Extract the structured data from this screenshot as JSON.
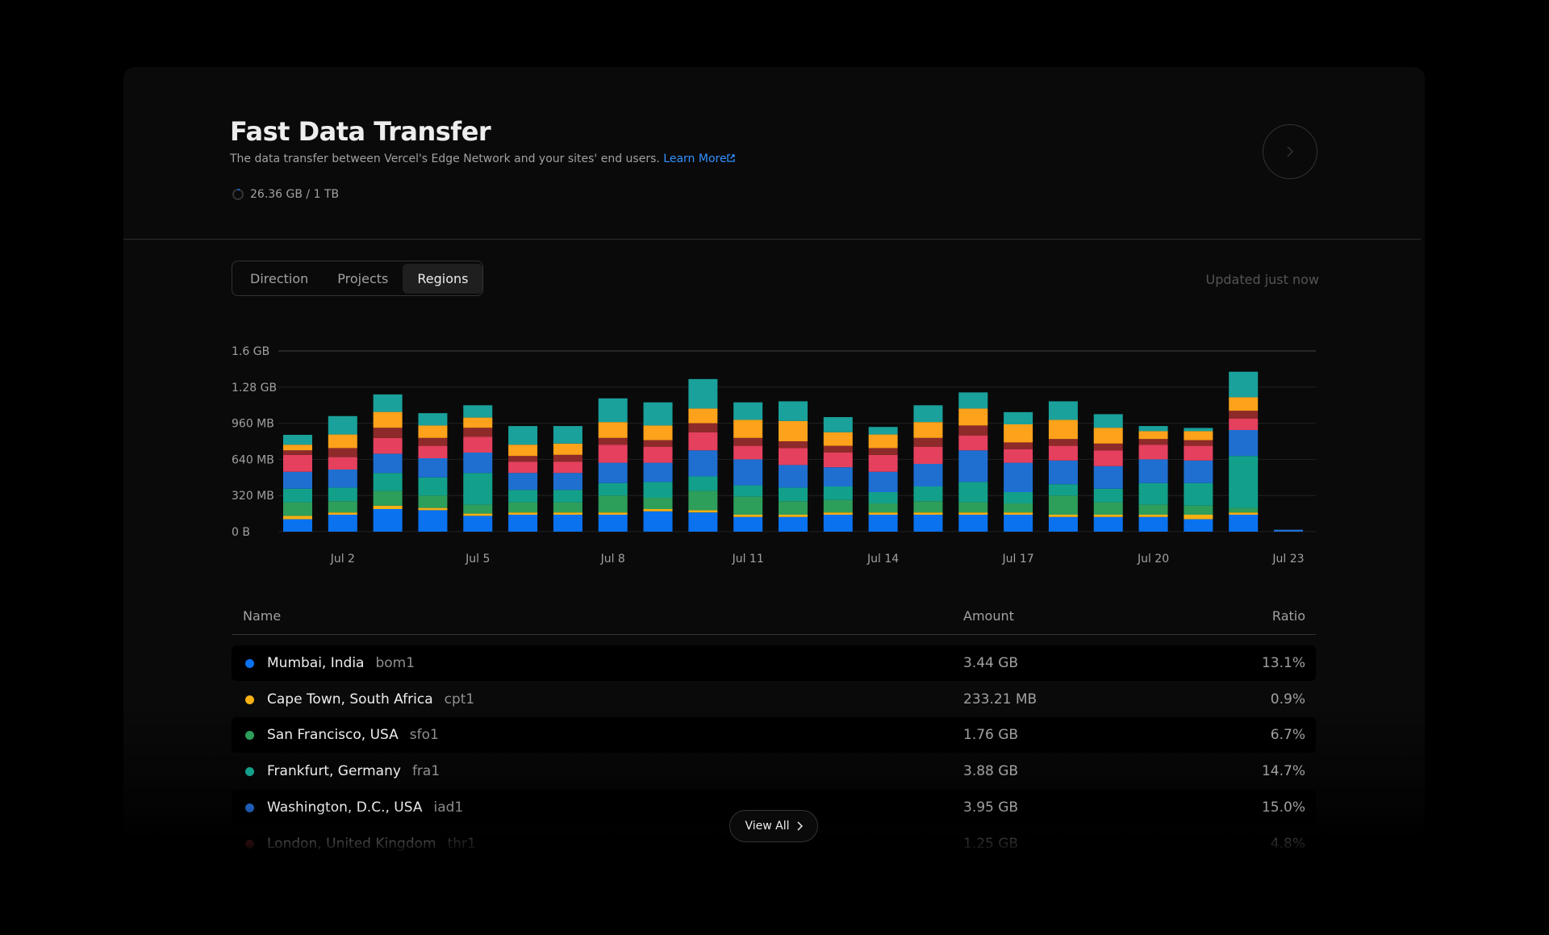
{
  "header": {
    "title": "Fast Data Transfer",
    "subtitle": "The data transfer between Vercel's Edge Network and your sites' end users.",
    "link": "Learn More",
    "usage": "26.36 GB / 1 TB"
  },
  "tabs": [
    "Direction",
    "Projects",
    "Regions"
  ],
  "updated": "Updated just now",
  "chart_data": {
    "type": "bar",
    "stacked": true,
    "grid": true,
    "categories": [
      null,
      "Jul 2",
      null,
      null,
      "Jul 5",
      null,
      null,
      "Jul 8",
      null,
      null,
      "Jul 11",
      null,
      null,
      "Jul 14",
      null,
      null,
      "Jul 17",
      null,
      null,
      "Jul 20",
      null,
      null,
      "Jul 23"
    ],
    "ylim": [
      0,
      1600
    ],
    "yticks": [
      {
        "value": 0,
        "label": "0 B"
      },
      {
        "value": 320,
        "label": "320 MB"
      },
      {
        "value": 640,
        "label": "640 MB"
      },
      {
        "value": 960,
        "label": "960 MB"
      },
      {
        "value": 1280,
        "label": "1.28 GB"
      },
      {
        "value": 1600,
        "label": "1.6 GB"
      }
    ],
    "series": [
      {
        "color": "#0a72ef",
        "values": [
          110,
          150,
          200,
          190,
          140,
          150,
          150,
          150,
          180,
          170,
          130,
          130,
          150,
          150,
          150,
          150,
          150,
          130,
          130,
          130,
          110,
          150,
          0
        ]
      },
      {
        "color": "#f5b014",
        "values": [
          30,
          20,
          30,
          20,
          20,
          20,
          20,
          20,
          20,
          20,
          20,
          20,
          20,
          20,
          20,
          20,
          20,
          20,
          20,
          20,
          40,
          20,
          0
        ]
      },
      {
        "color": "#2e9e5b",
        "values": [
          120,
          100,
          130,
          110,
          80,
          90,
          90,
          150,
          100,
          170,
          160,
          120,
          110,
          80,
          100,
          90,
          80,
          170,
          110,
          90,
          80,
          40,
          0
        ]
      },
      {
        "color": "#13a08b",
        "values": [
          120,
          120,
          160,
          160,
          280,
          110,
          110,
          110,
          140,
          130,
          100,
          120,
          120,
          100,
          130,
          180,
          100,
          100,
          120,
          190,
          200,
          460,
          0
        ]
      },
      {
        "color": "#1f6fd1",
        "values": [
          150,
          160,
          170,
          170,
          180,
          150,
          150,
          180,
          170,
          230,
          230,
          200,
          170,
          180,
          200,
          280,
          260,
          210,
          200,
          210,
          200,
          230,
          17
        ]
      },
      {
        "color": "#e5405e",
        "values": [
          150,
          110,
          140,
          110,
          140,
          100,
          100,
          160,
          140,
          160,
          120,
          150,
          130,
          150,
          150,
          130,
          120,
          130,
          140,
          130,
          130,
          100,
          0
        ]
      },
      {
        "color": "#8e2a2a",
        "values": [
          40,
          80,
          90,
          70,
          80,
          50,
          60,
          60,
          60,
          80,
          70,
          60,
          60,
          60,
          80,
          90,
          60,
          60,
          60,
          50,
          50,
          70,
          0
        ]
      },
      {
        "color": "#fda21a",
        "values": [
          50,
          120,
          140,
          110,
          90,
          100,
          100,
          140,
          130,
          130,
          160,
          180,
          120,
          120,
          140,
          150,
          160,
          170,
          140,
          70,
          80,
          120,
          0
        ]
      },
      {
        "color": "#1aa19b",
        "values": [
          87,
          163,
          155,
          109,
          109,
          165,
          155,
          210,
          205,
          261,
          155,
          174,
          134,
          67,
          149,
          143,
          108,
          164,
          120,
          45,
          28,
          226,
          0
        ]
      }
    ]
  },
  "table": {
    "columns": [
      "Name",
      "Amount",
      "Ratio"
    ],
    "rows": [
      {
        "name": "Mumbai, India",
        "code": "bom1",
        "amount": "3.44 GB",
        "ratio": "13.1%",
        "color": "#0a72ef"
      },
      {
        "name": "Cape Town, South Africa",
        "code": "cpt1",
        "amount": "233.21 MB",
        "ratio": "0.9%",
        "color": "#f5b014"
      },
      {
        "name": "San Francisco, USA",
        "code": "sfo1",
        "amount": "1.76 GB",
        "ratio": "6.7%",
        "color": "#2e9e5b"
      },
      {
        "name": "Frankfurt, Germany",
        "code": "fra1",
        "amount": "3.88 GB",
        "ratio": "14.7%",
        "color": "#13a08b"
      },
      {
        "name": "Washington, D.C., USA",
        "code": "iad1",
        "amount": "3.95 GB",
        "ratio": "15.0%",
        "color": "#1f5fb8"
      },
      {
        "name": "London, United Kingdom",
        "code": "thr1",
        "amount": "1.25 GB",
        "ratio": "4.8%",
        "color": "#8e2a2a"
      }
    ]
  },
  "view_all": "View All"
}
